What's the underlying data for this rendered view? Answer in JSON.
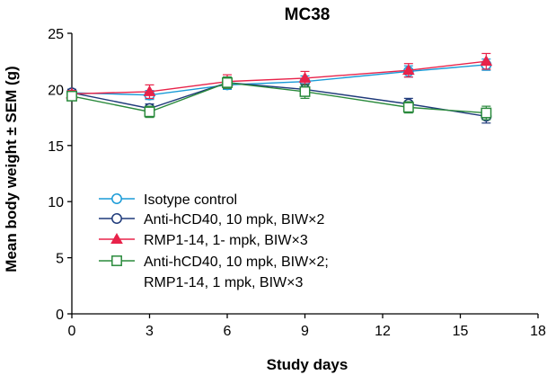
{
  "chart_data": {
    "type": "line",
    "title": "MC38",
    "xlabel": "Study days",
    "ylabel": "Mean body weight ± SEM (g)",
    "xlim": [
      0,
      18
    ],
    "ylim": [
      0,
      25
    ],
    "xticks": [
      0,
      3,
      6,
      9,
      12,
      15,
      18
    ],
    "yticks": [
      0,
      5,
      10,
      15,
      20,
      25
    ],
    "grid": false,
    "legend_position": "bottom-left",
    "series": [
      {
        "name": "Isotype control",
        "marker": "circle-open",
        "color": "#1a9bd7",
        "x": [
          0,
          3,
          6,
          9,
          13,
          16
        ],
        "y": [
          19.7,
          19.5,
          20.4,
          20.7,
          21.6,
          22.2
        ],
        "err": [
          0.3,
          0.4,
          0.4,
          0.5,
          0.5,
          0.5
        ]
      },
      {
        "name": "Anti-hCD40, 10 mpk, BIW×2",
        "marker": "circle-open",
        "color": "#1f3a7a",
        "x": [
          0,
          3,
          6,
          9,
          13,
          16
        ],
        "y": [
          19.7,
          18.3,
          20.6,
          20.0,
          18.7,
          17.6
        ],
        "err": [
          0.3,
          0.4,
          0.5,
          0.5,
          0.5,
          0.6
        ]
      },
      {
        "name": "RMP1-14, 1- mpk, BIW×3",
        "marker": "triangle-filled",
        "color": "#e8234a",
        "x": [
          0,
          3,
          6,
          9,
          13,
          16
        ],
        "y": [
          19.6,
          19.8,
          20.7,
          21.0,
          21.7,
          22.5
        ],
        "err": [
          0.3,
          0.6,
          0.6,
          0.6,
          0.6,
          0.7
        ]
      },
      {
        "name": "Anti-hCD40, 10 mpk, BIW×2;",
        "name_line2": "RMP1-14, 1 mpk, BIW×3",
        "marker": "square-open",
        "color": "#2a8a3c",
        "x": [
          0,
          3,
          6,
          9,
          13,
          16
        ],
        "y": [
          19.4,
          18.0,
          20.6,
          19.8,
          18.4,
          17.9
        ],
        "err": [
          0.4,
          0.5,
          0.5,
          0.6,
          0.5,
          0.6
        ]
      }
    ]
  }
}
